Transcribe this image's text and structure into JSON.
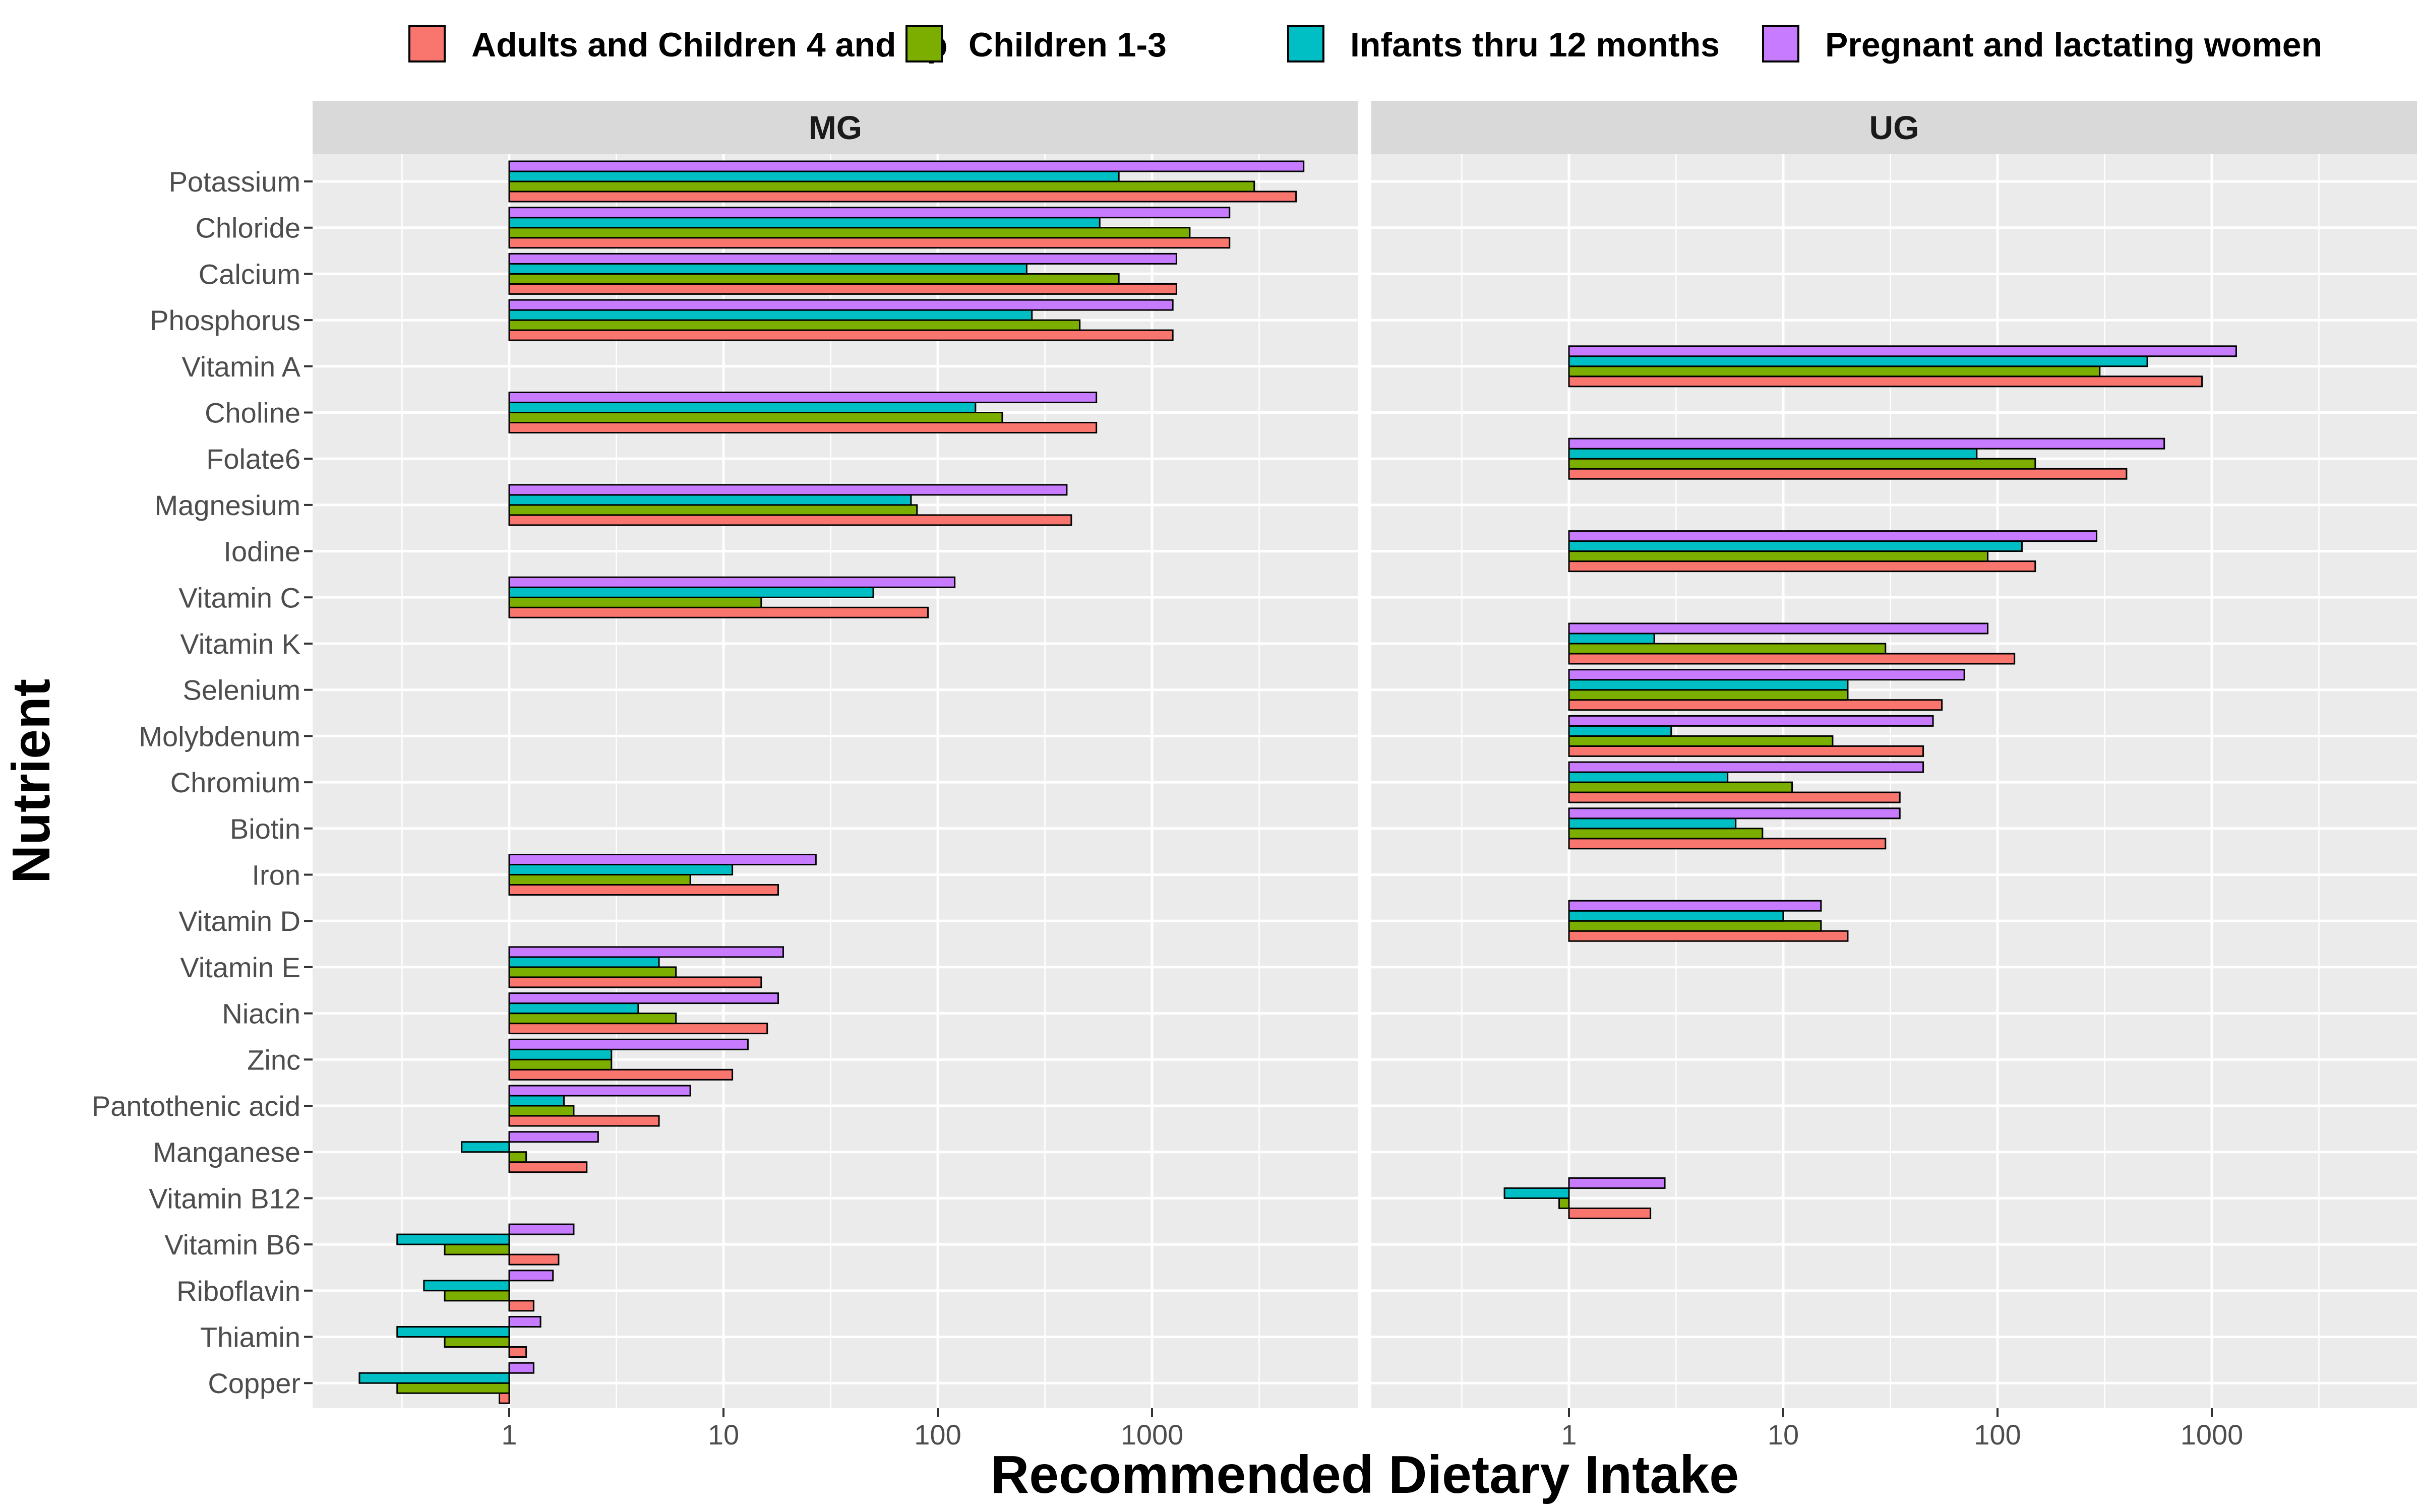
{
  "chart_data": {
    "type": "bar",
    "orientation": "horizontal",
    "xlabel": "Recommended Dietary Intake",
    "ylabel": "Nutrient",
    "xscale": "log10",
    "xlim": [
      0.1,
      6000
    ],
    "x_ticks": [
      1,
      10,
      100,
      1000
    ],
    "x_tick_labels": [
      "1",
      "10",
      "100",
      "1000"
    ],
    "grid": true,
    "legend_position": "top",
    "panels": [
      "MG",
      "UG"
    ],
    "categories": [
      "Potassium",
      "Chloride",
      "Calcium",
      "Phosphorus",
      "Vitamin A",
      "Choline",
      "Folate6",
      "Magnesium",
      "Iodine",
      "Vitamin C",
      "Vitamin K",
      "Selenium",
      "Molybdenum",
      "Chromium",
      "Biotin",
      "Iron",
      "Vitamin D",
      "Vitamin E",
      "Niacin",
      "Zinc",
      "Pantothenic acid",
      "Manganese",
      "Vitamin B12",
      "Vitamin B6",
      "Riboflavin",
      "Thiamin",
      "Copper"
    ],
    "series": [
      {
        "name": "Adults and Children 4 and up",
        "color": "#F8766D"
      },
      {
        "name": "Children 1-3",
        "color": "#7CAE00"
      },
      {
        "name": "Infants thru 12 months",
        "color": "#00BFC4"
      },
      {
        "name": "Pregnant and lactating women",
        "color": "#C77CFF"
      }
    ],
    "data": {
      "MG": {
        "Potassium": [
          4700,
          3000,
          700,
          5100
        ],
        "Chloride": [
          2300,
          1500,
          570,
          2300
        ],
        "Calcium": [
          1300,
          700,
          260,
          1300
        ],
        "Phosphorus": [
          1250,
          460,
          275,
          1250
        ],
        "Choline": [
          550,
          200,
          150,
          550
        ],
        "Magnesium": [
          420,
          80,
          75,
          400
        ],
        "Vitamin C": [
          90,
          15,
          50,
          120
        ],
        "Iron": [
          18,
          7,
          11,
          27
        ],
        "Vitamin E": [
          15,
          6,
          5,
          19
        ],
        "Niacin": [
          16,
          6,
          4,
          18
        ],
        "Zinc": [
          11,
          3,
          3,
          13
        ],
        "Pantothenic acid": [
          5,
          2,
          1.8,
          7
        ],
        "Manganese": [
          2.3,
          1.2,
          0.6,
          2.6
        ],
        "Vitamin B6": [
          1.7,
          0.5,
          0.3,
          2
        ],
        "Riboflavin": [
          1.3,
          0.5,
          0.4,
          1.6
        ],
        "Thiamin": [
          1.2,
          0.5,
          0.3,
          1.4
        ],
        "Copper": [
          0.9,
          0.3,
          0.2,
          1.3
        ]
      },
      "UG": {
        "Vitamin A": [
          900,
          300,
          500,
          1300
        ],
        "Folate6": [
          400,
          150,
          80,
          600
        ],
        "Iodine": [
          150,
          90,
          130,
          290
        ],
        "Vitamin K": [
          120,
          30,
          2.5,
          90
        ],
        "Selenium": [
          55,
          20,
          20,
          70
        ],
        "Molybdenum": [
          45,
          17,
          3,
          50
        ],
        "Chromium": [
          35,
          11,
          5.5,
          45
        ],
        "Biotin": [
          30,
          8,
          6,
          35
        ],
        "Vitamin D": [
          20,
          15,
          10,
          15
        ],
        "Vitamin B12": [
          2.4,
          0.9,
          0.5,
          2.8
        ]
      }
    }
  }
}
